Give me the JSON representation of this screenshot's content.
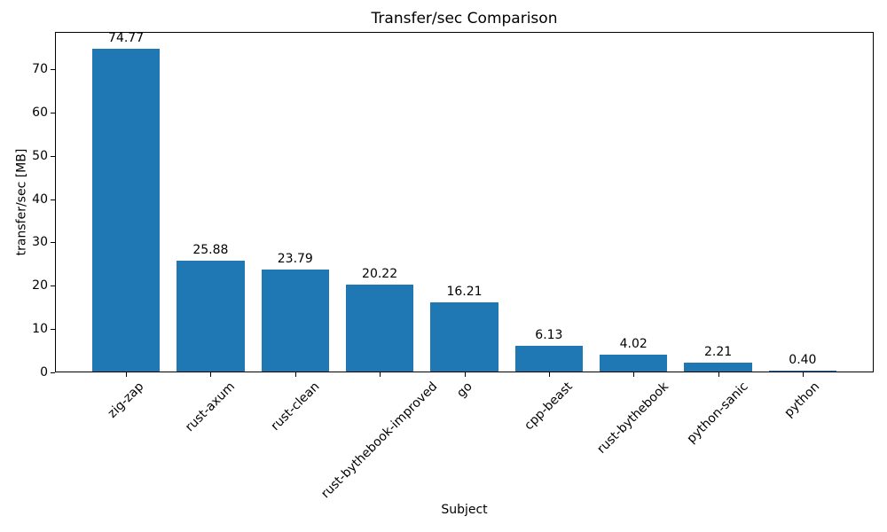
{
  "chart_data": {
    "type": "bar",
    "title": "Transfer/sec Comparison",
    "xlabel": "Subject",
    "ylabel": "transfer/sec [MB]",
    "categories": [
      "zig-zap",
      "rust-axum",
      "rust-clean",
      "rust-bythebook-improved",
      "go",
      "cpp-beast",
      "rust-bythebook",
      "python-sanic",
      "python"
    ],
    "values": [
      74.77,
      25.88,
      23.79,
      20.22,
      16.21,
      6.13,
      4.02,
      2.21,
      0.4
    ],
    "value_labels": [
      "74.77",
      "25.88",
      "23.79",
      "20.22",
      "16.21",
      "6.13",
      "4.02",
      "2.21",
      "0.40"
    ],
    "yticks": [
      0,
      10,
      20,
      30,
      40,
      50,
      60,
      70
    ],
    "ytick_labels": [
      "0",
      "10",
      "20",
      "30",
      "40",
      "50",
      "60",
      "70"
    ],
    "ylim": [
      0,
      78.6
    ],
    "bar_color": "#1f77b4",
    "text_color": "#000000",
    "grid": false,
    "legend": null,
    "x_tick_rotation_deg": 45
  }
}
